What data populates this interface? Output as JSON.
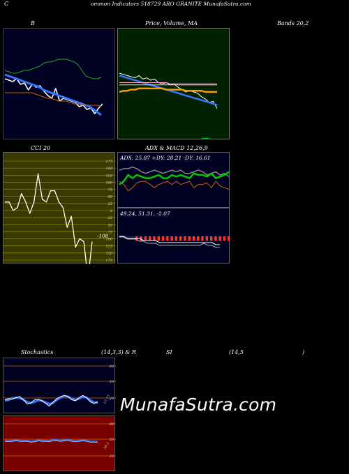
{
  "header": {
    "title_left": "C",
    "title_right": "ommon  Indicators 518729 ARO GRANITE MunafaSutra.com"
  },
  "labels": {
    "bollinger": "B",
    "price_vol_ma": "Price,  Volume,  MA",
    "bands": "Bands 20,2",
    "cci": "CCI 20",
    "adx_macd": "ADX  & MACD 12,26,9",
    "stoch_a": "Stochastics",
    "stoch_b": "(14,3,3) & R",
    "stoch_c": "SI",
    "stoch_d": "(14,5",
    "stoch_e": ")"
  },
  "watermark": "MunafaSutra.com",
  "colors": {
    "navy_bg": "#000022",
    "green_bg": "#002200",
    "olive_bg": "#3a3a00",
    "red_bg": "#7a0000",
    "accent_blue": "#3377ff",
    "accent_green": "#00cc00",
    "accent_orange": "#cc6600"
  },
  "chart_data": [
    {
      "type": "line",
      "name": "bollinger",
      "series": [
        {
          "role": "upper",
          "values": [
            70,
            71,
            72,
            72,
            71,
            70,
            70,
            69,
            68,
            67,
            65,
            64,
            64,
            63,
            62,
            62,
            62,
            63,
            64,
            66,
            70,
            74,
            75,
            76,
            76,
            75
          ]
        },
        {
          "role": "price",
          "values": [
            76,
            77,
            78,
            76,
            80,
            79,
            84,
            80,
            82,
            81,
            85,
            88,
            90,
            83,
            92,
            90,
            91,
            92,
            93,
            96,
            95,
            98,
            97,
            101,
            97,
            94
          ]
        },
        {
          "role": "middle",
          "values": [
            73,
            74,
            75,
            76,
            77,
            78,
            79,
            80,
            81,
            82,
            84,
            85,
            86,
            87,
            88,
            89,
            90,
            91,
            92,
            93,
            94,
            95,
            96,
            98,
            100,
            102
          ]
        },
        {
          "role": "lower",
          "values": [
            86,
            86,
            86,
            86,
            86,
            86,
            86,
            86,
            87,
            88,
            89,
            90,
            90,
            91,
            92,
            92,
            92,
            93,
            94,
            94,
            95,
            95,
            95,
            95,
            95,
            96
          ]
        }
      ]
    },
    {
      "type": "line",
      "name": "price_volume_ma",
      "series": [
        {
          "role": "price",
          "values": [
            58,
            59,
            60,
            61,
            62,
            60,
            63,
            62,
            64,
            63,
            66,
            67,
            66,
            68,
            67,
            70,
            72,
            74,
            73,
            74,
            75,
            78,
            80,
            83,
            82,
            88
          ]
        },
        {
          "role": "ma_blue",
          "values": [
            60,
            61,
            62,
            63,
            64,
            65,
            66,
            67,
            68,
            69,
            70,
            71,
            72,
            73,
            74,
            75,
            76,
            77,
            78,
            79,
            80,
            81,
            82,
            83,
            84,
            85
          ]
        },
        {
          "role": "ma_orange",
          "values": [
            74,
            73,
            73,
            72,
            72,
            71,
            71,
            71,
            71,
            71,
            71,
            71,
            72,
            72,
            72,
            72,
            72,
            73,
            73,
            73,
            73,
            73,
            74,
            74,
            74,
            74
          ]
        },
        {
          "role": "ma_white",
          "values": [
            68,
            68,
            68,
            68,
            68,
            68,
            68,
            68,
            68,
            68,
            68,
            68,
            68,
            68,
            68,
            68,
            68,
            68,
            68,
            68,
            68,
            68,
            68,
            68,
            68,
            68
          ]
        },
        {
          "role": "ma_pink",
          "values": [
            66,
            66,
            66,
            66,
            66,
            66,
            66,
            66,
            66,
            66,
            66,
            66,
            66,
            67,
            67,
            67,
            67,
            67,
            67,
            67,
            67,
            67,
            67,
            67,
            67,
            67
          ]
        }
      ]
    },
    {
      "type": "line",
      "name": "cci",
      "yticks": [
        "175",
        "150",
        "125",
        "100",
        "75",
        "50",
        "25",
        "0",
        "25",
        "50",
        "75",
        "100",
        "125",
        "150",
        "175"
      ],
      "current_value_label": "-108",
      "series": [
        {
          "role": "cci",
          "values": [
            30,
            30,
            0,
            10,
            60,
            30,
            -10,
            30,
            130,
            40,
            30,
            70,
            70,
            30,
            10,
            -60,
            -20,
            -130,
            -100,
            -110,
            -240,
            -110
          ]
        }
      ]
    },
    {
      "type": "line",
      "name": "adx",
      "readout": "ADX: 25.87  +DY: 28.21  -DY: 16.61",
      "series": [
        {
          "role": "adx",
          "values": [
            29,
            30,
            30,
            31,
            30,
            28,
            27,
            28,
            29,
            28,
            27,
            28,
            29,
            28,
            29,
            27,
            27,
            28,
            29,
            28,
            26,
            27,
            28,
            26,
            27,
            25
          ]
        },
        {
          "role": "plus_di",
          "values": [
            20,
            22,
            26,
            24,
            26,
            25,
            24,
            24,
            25,
            26,
            24,
            24,
            26,
            25,
            26,
            25,
            24,
            27,
            26,
            26,
            25,
            27,
            24,
            25,
            26,
            28
          ]
        },
        {
          "role": "minus_di",
          "values": [
            22,
            20,
            16,
            18,
            21,
            22,
            22,
            20,
            18,
            20,
            21,
            22,
            20,
            22,
            20,
            21,
            22,
            18,
            20,
            20,
            21,
            18,
            22,
            19,
            18,
            17
          ]
        }
      ]
    },
    {
      "type": "line",
      "name": "macd",
      "readout": "49.24,  51.31,  -2.07",
      "series": [
        {
          "role": "macd",
          "values": [
            0,
            0,
            -1,
            -1,
            -1,
            -2,
            -2,
            -3,
            -3,
            -3,
            -4,
            -4,
            -4,
            -4,
            -4,
            -4,
            -4,
            -4,
            -4,
            -4,
            -4,
            -3,
            -4,
            -4,
            -5,
            -5
          ]
        },
        {
          "role": "signal",
          "values": [
            0,
            0,
            -1,
            -1,
            -1,
            -1,
            -2,
            -2,
            -2,
            -2,
            -3,
            -3,
            -3,
            -3,
            -3,
            -3,
            -3,
            -3,
            -3,
            -3,
            -3,
            -3,
            -3,
            -3,
            -4,
            -4
          ]
        },
        {
          "role": "histogram",
          "values": [
            0,
            0,
            0,
            0,
            -1,
            -1,
            -1,
            -1,
            -1,
            -1,
            -1,
            -1,
            -1,
            -1,
            -1,
            -1,
            -1,
            -1,
            -1,
            -1,
            -1,
            -1,
            -1,
            -1,
            -1,
            -1
          ]
        }
      ]
    },
    {
      "type": "line",
      "name": "stochastics",
      "yticks": [
        "80",
        "50",
        "20"
      ],
      "current_value_label": "17.77",
      "series": [
        {
          "role": "k",
          "values": [
            22,
            24,
            23,
            26,
            28,
            22,
            14,
            16,
            22,
            23,
            20,
            15,
            10,
            18,
            24,
            28,
            30,
            28,
            22,
            20,
            26,
            30,
            26,
            18,
            15,
            18
          ]
        },
        {
          "role": "d",
          "values": [
            20,
            22,
            25,
            26,
            25,
            22,
            18,
            16,
            18,
            21,
            20,
            17,
            14,
            16,
            22,
            26,
            29,
            28,
            24,
            22,
            24,
            28,
            26,
            21,
            17,
            17
          ]
        }
      ]
    },
    {
      "type": "line",
      "name": "rsi",
      "yticks": [
        "80",
        "50",
        "20"
      ],
      "current_value_label": "38.1",
      "series": [
        {
          "role": "rsi",
          "values": [
            40,
            39,
            40,
            41,
            40,
            40,
            40,
            38,
            39,
            41,
            40,
            40,
            39,
            42,
            41,
            40,
            41,
            42,
            40,
            39,
            40,
            41,
            40,
            38,
            38,
            38
          ]
        }
      ]
    }
  ]
}
